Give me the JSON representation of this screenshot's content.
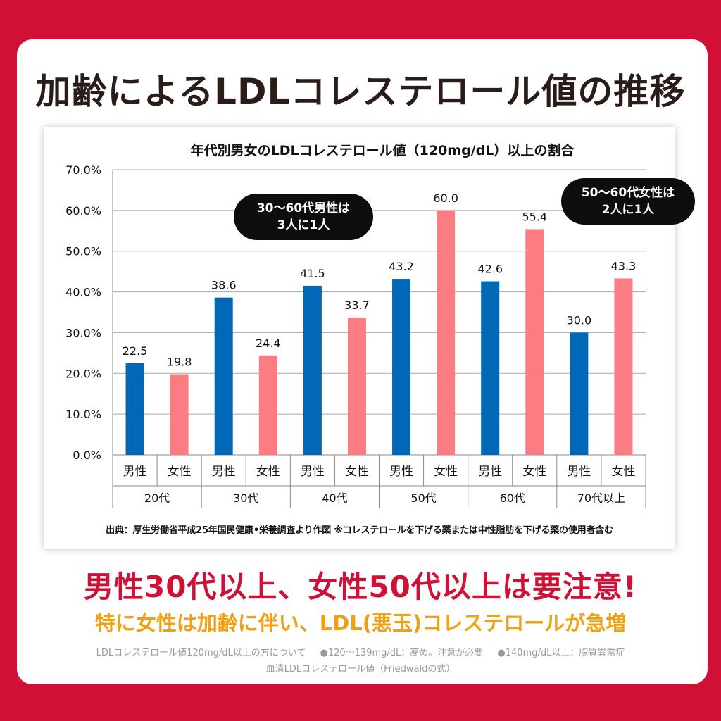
{
  "page": {
    "title": "加齢によるLDLコレステロール値の推移",
    "headline": "男性30代以上、女性50代以上は要注意!",
    "subheadline": "特に女性は加齢に伴い、LDL(悪玉)コレステロールが急増",
    "notes": {
      "part1": "LDLコレステロール値120mg/dL以上の方について",
      "part2": "●120～139mg/dL：高め。注意が必要",
      "part3": "●140mg/dL以上：脂質異常症",
      "line2": "血清LDLコレステロール値（Friedwaldの式）"
    },
    "colors": {
      "background": "#d01035",
      "male": "#0068b7",
      "female": "#fc7c83",
      "accent": "#f0a010"
    }
  },
  "callouts": {
    "male": {
      "line1": "30～60代男性は",
      "line2": "3人に1人"
    },
    "female": {
      "line1": "50～60代女性は",
      "line2": "2人に1人"
    }
  },
  "source": "出典：厚生労働省平成25年国民健康•栄養調査より作図 ※コレステロールを下げる薬または中性脂肪を下げる薬の使用者含む",
  "chart_data": {
    "type": "bar",
    "title": "年代別男女のLDLコレステロール値（120mg/dL）以上の割合",
    "groups": [
      "20代",
      "30代",
      "40代",
      "50代",
      "60代",
      "70代以上"
    ],
    "subcategories": [
      "男性",
      "女性"
    ],
    "series": [
      {
        "name": "男性",
        "color": "#0068b7",
        "values": [
          22.5,
          38.6,
          41.5,
          43.2,
          42.6,
          30.0
        ]
      },
      {
        "name": "女性",
        "color": "#fc7c83",
        "values": [
          19.8,
          24.4,
          33.7,
          60.0,
          55.4,
          43.3
        ]
      }
    ],
    "ylim": [
      0,
      70
    ],
    "yticks": [
      0,
      10,
      20,
      30,
      40,
      50,
      60,
      70
    ],
    "ytick_labels": [
      "0.0%",
      "10.0%",
      "20.0%",
      "30.0%",
      "40.0%",
      "50.0%",
      "60.0%",
      "70.0%"
    ],
    "grid": true,
    "value_decimals": 1
  }
}
